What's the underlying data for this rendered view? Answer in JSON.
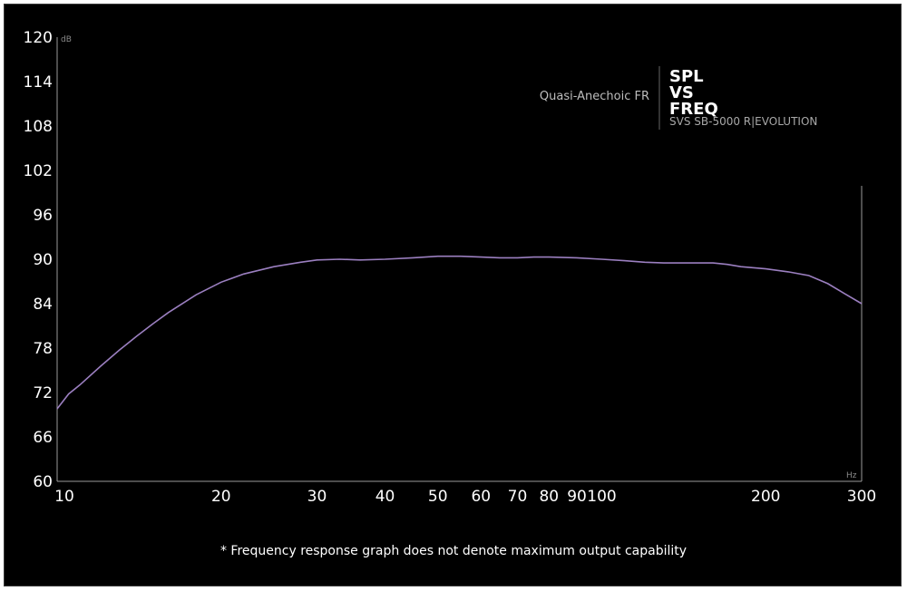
{
  "chart_data": {
    "type": "line",
    "title_lines": [
      "SPL",
      "VS",
      "FREQ"
    ],
    "subtitle": "Quasi-Anechoic FR",
    "product": "SVS SB-5000 R|EVOLUTION",
    "ylabel": "dB",
    "xlabel": "Hz",
    "x_scale": "log",
    "xlim": [
      10,
      300
    ],
    "ylim": [
      60,
      120
    ],
    "x_ticks": [
      10,
      20,
      30,
      40,
      50,
      60,
      70,
      80,
      90,
      100,
      200,
      300
    ],
    "y_ticks": [
      120,
      114,
      108,
      102,
      96,
      90,
      84,
      78,
      72,
      66,
      60
    ],
    "grid": false,
    "line_color": "#9b7fc0",
    "series": [
      {
        "x": [
          10,
          10.5,
          11,
          12,
          13,
          14,
          15,
          16,
          18,
          20,
          22,
          25,
          28,
          30,
          33,
          36,
          40,
          45,
          50,
          55,
          60,
          65,
          70,
          75,
          80,
          90,
          100,
          110,
          120,
          130,
          140,
          150,
          160,
          170,
          180,
          200,
          220,
          240,
          260,
          280,
          300
        ],
        "y": [
          69.8,
          71.8,
          73.0,
          75.5,
          77.7,
          79.6,
          81.3,
          82.8,
          85.2,
          86.9,
          88.0,
          89.0,
          89.6,
          89.9,
          90.0,
          89.9,
          90.0,
          90.2,
          90.4,
          90.4,
          90.3,
          90.2,
          90.2,
          90.3,
          90.3,
          90.2,
          90.0,
          89.8,
          89.6,
          89.5,
          89.5,
          89.5,
          89.5,
          89.3,
          89.0,
          88.7,
          88.3,
          87.8,
          86.7,
          85.3,
          84.0
        ]
      }
    ]
  },
  "footnote": "* Frequency response graph does not denote maximum output capability"
}
